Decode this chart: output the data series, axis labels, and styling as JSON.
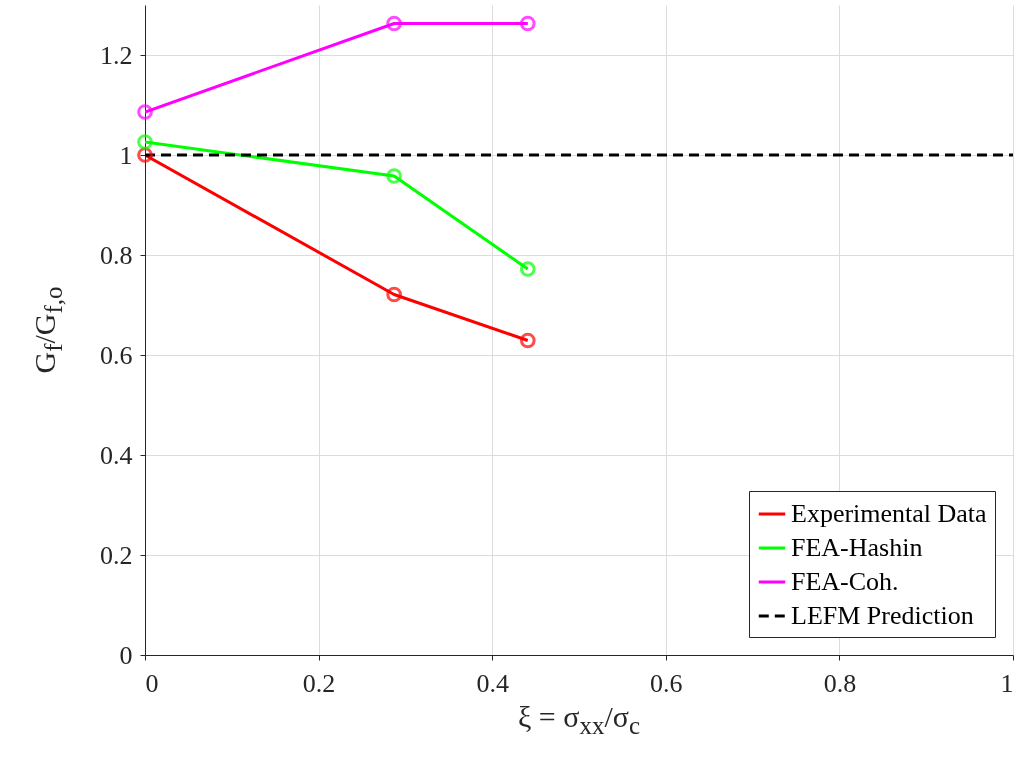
{
  "chart_data": {
    "type": "line",
    "xlabel": "ξ = σ$_{xx}$/σ$_{c}$",
    "ylabel": "G$_{f}$/G$_{f,o}$",
    "series": [
      {
        "name": "Experimental Data",
        "color": "#ff0000",
        "x": [
          0,
          0.287,
          0.441
        ],
        "values": [
          1,
          0.721,
          0.629
        ]
      },
      {
        "name": "FEA-Hashin",
        "color": "#00ff00",
        "x": [
          0,
          0.287,
          0.441
        ],
        "values": [
          1.026,
          0.958,
          0.772
        ]
      },
      {
        "name": "FEA-Coh.",
        "color": "#ff00ff",
        "x": [
          0,
          0.287,
          0.441
        ],
        "values": [
          1.086,
          1.263,
          1.263
        ]
      },
      {
        "name": "LEFM Prediction",
        "color": "#000000",
        "x": [
          0,
          1
        ],
        "values": [
          1,
          1
        ],
        "line_style": "dashed",
        "marker": "none"
      }
    ],
    "marker": "circle",
    "line_style": "solid",
    "xlim": [
      0,
      1
    ],
    "ylim": [
      0,
      1.3
    ],
    "xticks": [
      0,
      0.2,
      0.4,
      0.6,
      0.8,
      1
    ],
    "yticks": [
      0,
      0.2,
      0.4,
      0.6,
      0.8,
      1,
      1.2
    ],
    "grid": true,
    "legend": "bottom right"
  }
}
